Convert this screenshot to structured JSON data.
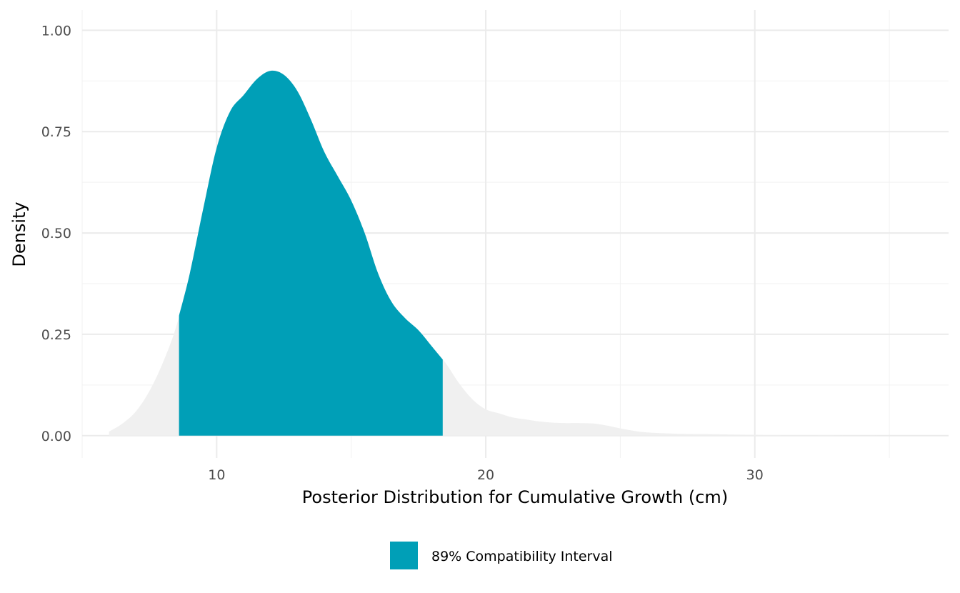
{
  "chart_data": {
    "type": "area",
    "title": "",
    "xlabel": "Posterior Distribution for Cumulative Growth (cm)",
    "ylabel": "Density",
    "xlim": [
      5.0,
      37.2
    ],
    "ylim": [
      -0.055,
      1.05
    ],
    "x_ticks": [
      10,
      20,
      30
    ],
    "x_tick_labels": [
      "10",
      "20",
      "30"
    ],
    "x_minor_ticks": [
      5,
      15,
      25,
      35
    ],
    "y_ticks": [
      0.0,
      0.25,
      0.5,
      0.75,
      1.0
    ],
    "y_tick_labels": [
      "0.00",
      "0.25",
      "0.50",
      "0.75",
      "1.00"
    ],
    "y_minor_ticks": [
      0.125,
      0.375,
      0.625,
      0.875
    ],
    "grid": true,
    "legend_position": "bottom",
    "series": [
      {
        "fill": "#f0f0f0",
        "x": [
          6.0,
          6.5,
          7.0,
          7.5,
          8.0,
          8.5,
          9.0,
          9.5,
          10.0,
          10.5,
          11.0,
          11.5,
          12.0,
          12.5,
          13.0,
          13.5,
          14.0,
          14.5,
          15.0,
          15.5,
          16.0,
          16.5,
          17.0,
          17.5,
          18.0,
          18.5,
          19.0,
          19.5,
          20.0,
          20.5,
          21.0,
          21.5,
          22.0,
          22.5,
          23.0,
          23.5,
          24.0,
          24.5,
          25.0,
          25.5,
          26.0,
          27.0,
          28.0,
          29.0,
          30.0,
          31.0,
          32.0,
          33.0,
          34.0,
          35.0,
          36.0,
          37.0
        ],
        "y": [
          0.01,
          0.03,
          0.06,
          0.11,
          0.18,
          0.27,
          0.4,
          0.56,
          0.71,
          0.8,
          0.84,
          0.88,
          0.9,
          0.89,
          0.85,
          0.78,
          0.7,
          0.64,
          0.58,
          0.5,
          0.4,
          0.33,
          0.29,
          0.26,
          0.22,
          0.18,
          0.13,
          0.09,
          0.065,
          0.055,
          0.045,
          0.04,
          0.035,
          0.032,
          0.031,
          0.031,
          0.03,
          0.025,
          0.018,
          0.012,
          0.008,
          0.005,
          0.004,
          0.003,
          0.002,
          0.001,
          0.001,
          0.001,
          0.0,
          0.0,
          0.0,
          0.0
        ]
      },
      {
        "name": "89% Compatibility Interval",
        "fill": "#009fb7",
        "interval": [
          8.6,
          18.4
        ]
      }
    ]
  }
}
